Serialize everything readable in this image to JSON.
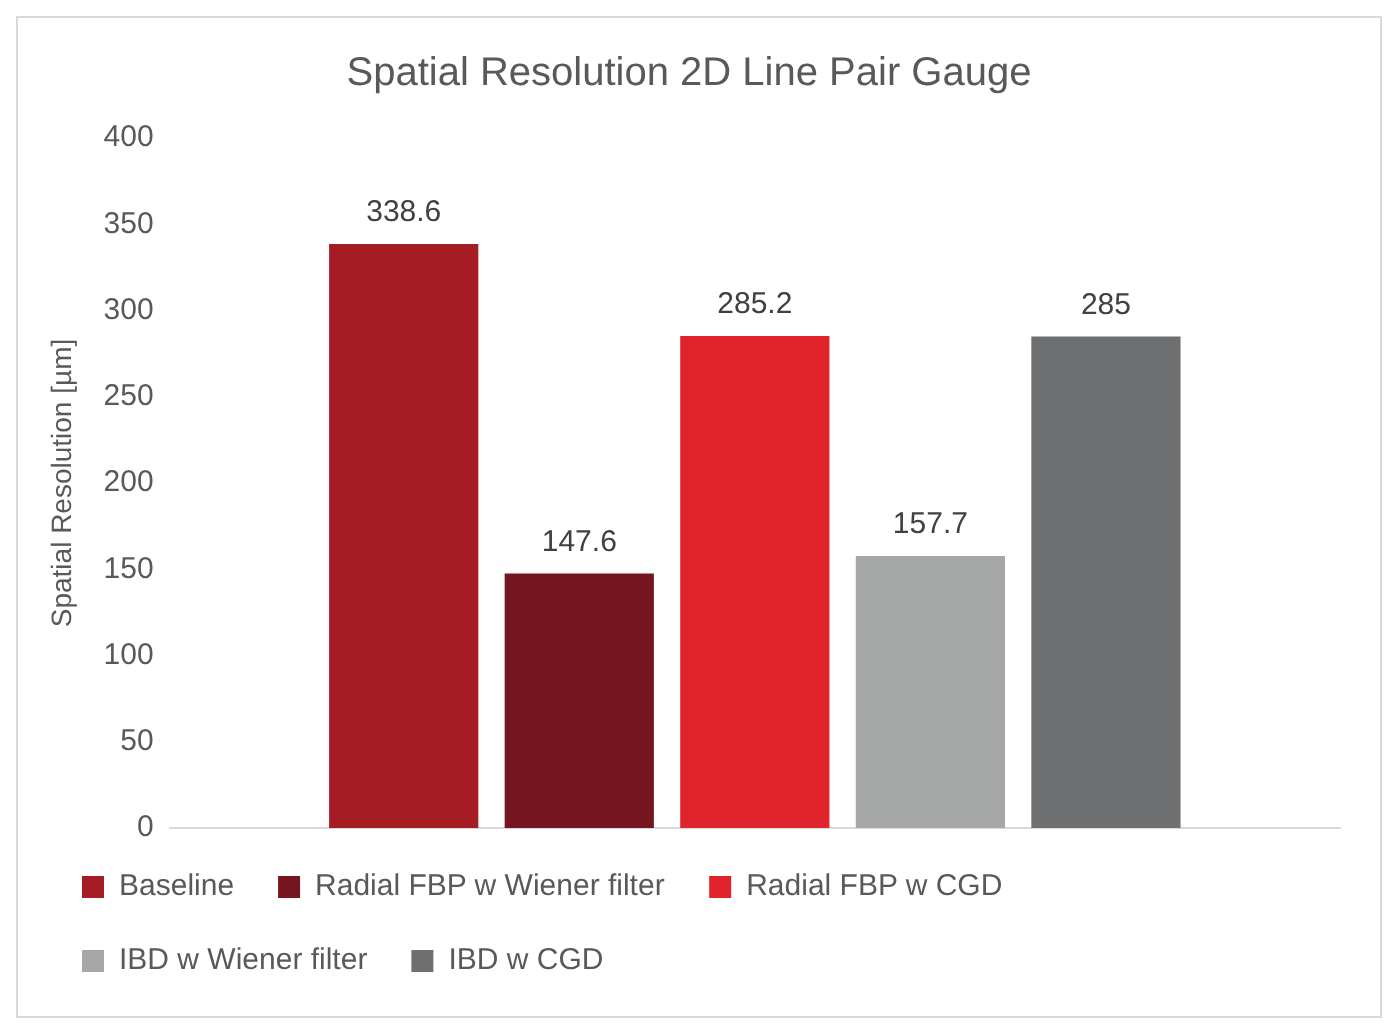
{
  "chart_data": {
    "type": "bar",
    "title": "Spatial Resolution 2D Line Pair Gauge",
    "ylabel": "Spatial Resolution [µm]",
    "categories": [
      null
    ],
    "series": [
      {
        "name": "Baseline",
        "color": "#a51c24",
        "values": [
          338.6
        ]
      },
      {
        "name": "Radial FBP w Wiener filter",
        "color": "#75151f",
        "values": [
          147.6
        ]
      },
      {
        "name": "Radial FBP w CGD",
        "color": "#e0242b",
        "values": [
          285.2
        ]
      },
      {
        "name": "IBD w Wiener filter",
        "color": "#a6a8a8",
        "values": [
          157.7
        ]
      },
      {
        "name": "IBD w CGD",
        "color": "#6d6f71",
        "values": [
          285
        ]
      }
    ],
    "ylim": [
      0,
      400
    ],
    "yticks": [
      0,
      50,
      100,
      150,
      200,
      250,
      300,
      350,
      400
    ],
    "grid": false,
    "legend": "bottom",
    "data_labels": true
  }
}
